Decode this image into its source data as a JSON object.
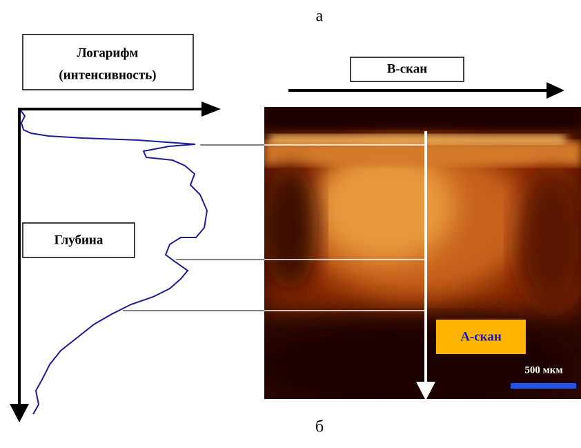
{
  "top_label": "а",
  "bottom_label": "б",
  "intensity_box": {
    "line1": "Логарифм",
    "line2": "(интенсивность)"
  },
  "bscan_label": "В-скан",
  "depth_label": "Глубина",
  "ascan_label": "А-скан",
  "scale_label": "500 мкм"
}
